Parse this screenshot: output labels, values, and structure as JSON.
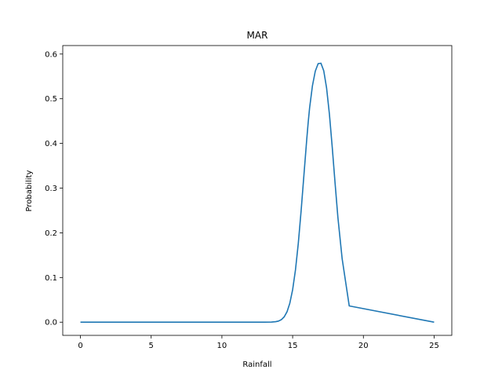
{
  "chart_data": {
    "type": "line",
    "title": "MAR",
    "xlabel": "Rainfall",
    "ylabel": "Probability",
    "xlim": [
      -1.25,
      26.25
    ],
    "ylim": [
      -0.0295,
      0.619
    ],
    "x_ticks": [
      0,
      5,
      10,
      15,
      20,
      25
    ],
    "y_ticks": [
      0.0,
      0.1,
      0.2,
      0.3,
      0.4,
      0.5,
      0.6
    ],
    "x_tick_labels": [
      "0",
      "5",
      "10",
      "15",
      "20",
      "25"
    ],
    "y_tick_labels": [
      "0.0",
      "0.1",
      "0.2",
      "0.3",
      "0.4",
      "0.5",
      "0.6"
    ],
    "grid": false,
    "legend": "none",
    "color": "#1f77b4",
    "series": [
      {
        "x": [
          0,
          13,
          13.5,
          13.8,
          14.0,
          14.2,
          14.4,
          14.6,
          14.8,
          15.0,
          15.2,
          15.4,
          15.6,
          15.8,
          16.0,
          16.1,
          16.2,
          16.4,
          16.6,
          16.8,
          17.0,
          17.2,
          17.4,
          17.6,
          17.8,
          18.0,
          18.2,
          18.5,
          19.0,
          25
        ],
        "y": [
          0.0,
          0.0,
          0.0003,
          0.0011,
          0.0025,
          0.0056,
          0.0118,
          0.0231,
          0.0424,
          0.0728,
          0.1171,
          0.1766,
          0.2495,
          0.3303,
          0.4104,
          0.4474,
          0.4797,
          0.5291,
          0.5617,
          0.5784,
          0.5795,
          0.5624,
          0.5238,
          0.4651,
          0.391,
          0.3108,
          0.234,
          0.1418,
          0.0364,
          0.0
        ]
      }
    ]
  }
}
